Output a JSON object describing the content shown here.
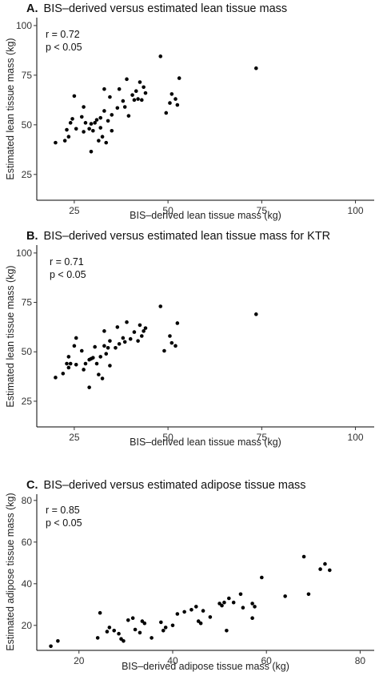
{
  "chart_data": [
    {
      "type": "scatter",
      "panel": "A.",
      "title": "BIS–derived versus estimated lean tissue mass",
      "xlabel": "BIS–derived lean tissue mass (kg)",
      "ylabel": "Estimated lean tissue mass (kg)",
      "xlim": [
        15,
        105
      ],
      "ylim": [
        12,
        104
      ],
      "xticks": [
        25,
        50,
        75,
        100
      ],
      "yticks": [
        25,
        50,
        75,
        100
      ],
      "annotations": [
        "r = 0.72",
        "p < 0.05"
      ],
      "points": [
        [
          20,
          41
        ],
        [
          22.5,
          42
        ],
        [
          23,
          47.5
        ],
        [
          23.5,
          44
        ],
        [
          24,
          51
        ],
        [
          24.5,
          53
        ],
        [
          25,
          64.5
        ],
        [
          25.5,
          48
        ],
        [
          27,
          54
        ],
        [
          27.5,
          59
        ],
        [
          27.5,
          46.5
        ],
        [
          28,
          51
        ],
        [
          29,
          48
        ],
        [
          29.5,
          50.5
        ],
        [
          29.5,
          36.5
        ],
        [
          30,
          47
        ],
        [
          30.5,
          51
        ],
        [
          31,
          52.5
        ],
        [
          31.5,
          42
        ],
        [
          32,
          48.5
        ],
        [
          32,
          53.5
        ],
        [
          32.5,
          44
        ],
        [
          33,
          57
        ],
        [
          33,
          68
        ],
        [
          33.5,
          41
        ],
        [
          34,
          52
        ],
        [
          34.5,
          64
        ],
        [
          35,
          55
        ],
        [
          35,
          47
        ],
        [
          36.5,
          58.5
        ],
        [
          37,
          68
        ],
        [
          38,
          62
        ],
        [
          38.5,
          59
        ],
        [
          39,
          73
        ],
        [
          39.5,
          54.5
        ],
        [
          40.5,
          65
        ],
        [
          41,
          62.5
        ],
        [
          41.5,
          67
        ],
        [
          42,
          63
        ],
        [
          42.5,
          71.5
        ],
        [
          43,
          62.5
        ],
        [
          43.5,
          69
        ],
        [
          44,
          66
        ],
        [
          48,
          84.5
        ],
        [
          49.5,
          56
        ],
        [
          50.5,
          61
        ],
        [
          51,
          65.5
        ],
        [
          52,
          63
        ],
        [
          52.5,
          60
        ],
        [
          53,
          73.5
        ],
        [
          73.5,
          78.5
        ]
      ]
    },
    {
      "type": "scatter",
      "panel": "B.",
      "title": "BIS–derived versus estimated lean tissue mass for KTR",
      "xlabel": "BIS–derived lean tissue mass (kg)",
      "ylabel": "Estimated lean tissue mass (kg)",
      "xlim": [
        15,
        105
      ],
      "ylim": [
        12,
        104
      ],
      "xticks": [
        25,
        50,
        75,
        100
      ],
      "yticks": [
        25,
        50,
        75,
        100
      ],
      "annotations": [
        "r = 0.71",
        "p < 0.05"
      ],
      "points": [
        [
          20,
          37
        ],
        [
          22,
          39
        ],
        [
          23,
          44
        ],
        [
          23.5,
          47.5
        ],
        [
          23.5,
          42
        ],
        [
          24,
          44
        ],
        [
          25,
          53
        ],
        [
          25.5,
          57
        ],
        [
          25.5,
          43.5
        ],
        [
          27,
          50.5
        ],
        [
          27.5,
          41
        ],
        [
          28,
          44
        ],
        [
          29,
          46
        ],
        [
          29,
          32
        ],
        [
          29.5,
          46.5
        ],
        [
          30,
          47
        ],
        [
          30.5,
          52.5
        ],
        [
          31,
          44
        ],
        [
          31.5,
          38.5
        ],
        [
          32,
          47.5
        ],
        [
          32.5,
          36.5
        ],
        [
          33,
          53
        ],
        [
          33,
          60.5
        ],
        [
          33.5,
          49
        ],
        [
          34,
          52
        ],
        [
          34.5,
          43
        ],
        [
          34.5,
          55.5
        ],
        [
          36,
          52
        ],
        [
          36.5,
          62.5
        ],
        [
          37,
          54
        ],
        [
          38,
          57
        ],
        [
          38.5,
          55
        ],
        [
          39,
          65
        ],
        [
          40,
          56.5
        ],
        [
          41,
          60
        ],
        [
          42,
          55.5
        ],
        [
          42.5,
          63.5
        ],
        [
          43,
          58
        ],
        [
          43.5,
          60.5
        ],
        [
          44,
          62
        ],
        [
          48,
          73
        ],
        [
          49,
          50.5
        ],
        [
          50.5,
          58
        ],
        [
          51,
          54.5
        ],
        [
          52,
          53
        ],
        [
          52.5,
          64.5
        ],
        [
          73.5,
          69
        ]
      ]
    },
    {
      "type": "scatter",
      "panel": "C.",
      "title": "BIS–derived versus estimated adipose tissue mass",
      "xlabel": "BIS–derived adipose tissue mass (kg)",
      "ylabel": "Estimated adipose tissue mass (kg)",
      "xlim": [
        11,
        83
      ],
      "ylim": [
        8,
        83
      ],
      "xticks": [
        20,
        40,
        60,
        80
      ],
      "yticks": [
        20,
        40,
        60,
        80
      ],
      "annotations": [
        "r = 0.85",
        "p < 0.05"
      ],
      "points": [
        [
          14,
          10
        ],
        [
          15.5,
          12.5
        ],
        [
          24,
          14
        ],
        [
          24.5,
          26
        ],
        [
          26,
          17
        ],
        [
          26.5,
          19
        ],
        [
          27.5,
          17.5
        ],
        [
          28.5,
          16
        ],
        [
          29,
          13.5
        ],
        [
          29.5,
          12.5
        ],
        [
          30.5,
          22.5
        ],
        [
          31.5,
          23.5
        ],
        [
          32,
          18
        ],
        [
          33,
          16.5
        ],
        [
          33.5,
          22
        ],
        [
          34,
          21
        ],
        [
          35.5,
          14
        ],
        [
          37.5,
          21.5
        ],
        [
          38,
          17.5
        ],
        [
          38.5,
          19
        ],
        [
          40,
          20
        ],
        [
          41,
          25.5
        ],
        [
          42.5,
          26.5
        ],
        [
          44,
          27.5
        ],
        [
          45,
          29
        ],
        [
          45.5,
          22
        ],
        [
          46,
          21
        ],
        [
          46.5,
          27
        ],
        [
          48,
          24
        ],
        [
          50,
          30.5
        ],
        [
          50.5,
          29.5
        ],
        [
          51,
          31
        ],
        [
          51.5,
          17.5
        ],
        [
          52,
          33
        ],
        [
          53,
          31
        ],
        [
          54.5,
          35
        ],
        [
          55,
          28.5
        ],
        [
          57,
          23.5
        ],
        [
          57,
          30.5
        ],
        [
          57.5,
          29
        ],
        [
          59,
          43
        ],
        [
          64,
          34
        ],
        [
          68,
          53
        ],
        [
          69,
          35
        ],
        [
          71.5,
          47
        ],
        [
          72.5,
          49.5
        ],
        [
          73.5,
          46.5
        ]
      ]
    }
  ]
}
